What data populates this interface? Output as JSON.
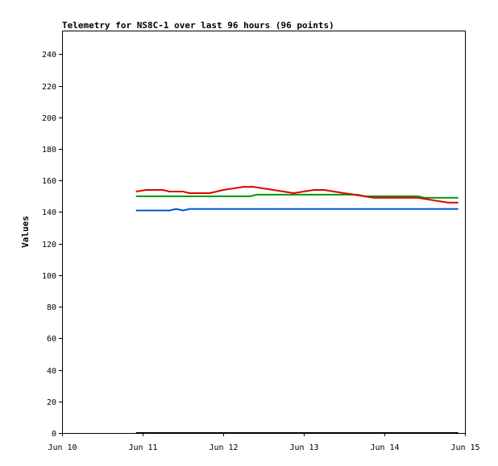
{
  "chart_data": {
    "type": "line",
    "title": "Telemetry for NS8C-1 over last 96 hours (96 points)",
    "xlabel": "",
    "ylabel": "Values",
    "x_ticks": [
      "Jun 10",
      "Jun 11",
      "Jun 12",
      "Jun 13",
      "Jun 14",
      "Jun 15"
    ],
    "xlim": [
      "Jun 10 00:00",
      "Jun 15 00:00"
    ],
    "ylim": [
      0,
      255
    ],
    "y_ticks": [
      0,
      20,
      40,
      60,
      80,
      100,
      120,
      140,
      160,
      180,
      200,
      220,
      240
    ],
    "grid": false,
    "legend": "none",
    "series": [
      {
        "color": "#0055cc",
        "points": [
          [
            "Jun 10 22:00",
            141
          ],
          [
            "Jun 11 08:00",
            141
          ],
          [
            "Jun 11 10:00",
            142
          ],
          [
            "Jun 11 12:00",
            141
          ],
          [
            "Jun 11 14:00",
            142
          ],
          [
            "Jun 12 12:00",
            142
          ],
          [
            "Jun 13 12:00",
            142
          ],
          [
            "Jun 14 12:00",
            142
          ],
          [
            "Jun 14 22:00",
            142
          ]
        ]
      },
      {
        "color": "#009900",
        "points": [
          [
            "Jun 10 22:00",
            150
          ],
          [
            "Jun 12 08:00",
            150
          ],
          [
            "Jun 12 10:00",
            151
          ],
          [
            "Jun 13 16:00",
            151
          ],
          [
            "Jun 13 18:00",
            150
          ],
          [
            "Jun 14 10:00",
            150
          ],
          [
            "Jun 14 12:00",
            149
          ],
          [
            "Jun 14 22:00",
            149
          ]
        ]
      },
      {
        "color": "#dd0000",
        "points": [
          [
            "Jun 10 22:00",
            153
          ],
          [
            "Jun 11 01:00",
            154
          ],
          [
            "Jun 11 06:00",
            154
          ],
          [
            "Jun 11 08:00",
            153
          ],
          [
            "Jun 11 12:00",
            153
          ],
          [
            "Jun 11 14:00",
            152
          ],
          [
            "Jun 11 20:00",
            152
          ],
          [
            "Jun 12 00:00",
            154
          ],
          [
            "Jun 12 03:00",
            155
          ],
          [
            "Jun 12 06:00",
            156
          ],
          [
            "Jun 12 09:00",
            156
          ],
          [
            "Jun 12 12:00",
            155
          ],
          [
            "Jun 12 15:00",
            154
          ],
          [
            "Jun 12 18:00",
            153
          ],
          [
            "Jun 12 21:00",
            152
          ],
          [
            "Jun 13 00:00",
            153
          ],
          [
            "Jun 13 03:00",
            154
          ],
          [
            "Jun 13 06:00",
            154
          ],
          [
            "Jun 13 09:00",
            153
          ],
          [
            "Jun 13 12:00",
            152
          ],
          [
            "Jun 13 15:00",
            151
          ],
          [
            "Jun 13 18:00",
            150
          ],
          [
            "Jun 13 21:00",
            149
          ],
          [
            "Jun 14 10:00",
            149
          ],
          [
            "Jun 14 13:00",
            148
          ],
          [
            "Jun 14 16:00",
            147
          ],
          [
            "Jun 14 19:00",
            146
          ],
          [
            "Jun 14 22:00",
            146
          ]
        ]
      },
      {
        "color": "#000000",
        "points": [
          [
            "Jun 10 22:00",
            0
          ],
          [
            "Jun 14 22:00",
            0
          ]
        ]
      }
    ]
  }
}
